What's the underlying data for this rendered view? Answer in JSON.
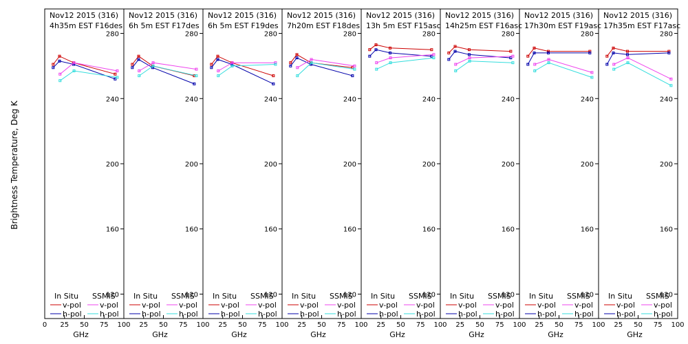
{
  "chart_data": {
    "type": "line",
    "ylabel": "Brightness Temperature, Deg K",
    "xlabel": "GHz",
    "xlim": [
      0,
      100
    ],
    "ylim": [
      105,
      295
    ],
    "x_ticks": [
      "0",
      "25",
      "50",
      "75",
      "100"
    ],
    "y_ticks": [
      "120",
      "160",
      "200",
      "240",
      "280"
    ],
    "legend": {
      "in_situ_title": "In Situ",
      "ssmis_title": "SSMIS",
      "vpol": "v-pol",
      "hpol": "h-pol"
    },
    "colors": {
      "insitu_v": "#cc0000",
      "insitu_h": "#0000aa",
      "ssmis_v": "#ee44ee",
      "ssmis_h": "#33dddd"
    },
    "panels": [
      {
        "line1": "Nov12 2015 (316)",
        "line2": "4h35m  EST  F16des",
        "insitu_v": {
          "x": [
            10.7,
            18.7,
            36.5,
            89.0
          ],
          "y": [
            261,
            266,
            262,
            255
          ]
        },
        "insitu_h": {
          "x": [
            10.7,
            18.7,
            36.5,
            89.0
          ],
          "y": [
            259,
            263,
            261,
            252
          ]
        },
        "ssmis_v": {
          "x": [
            19.35,
            37.0,
            91.65
          ],
          "y": [
            255,
            262,
            257
          ]
        },
        "ssmis_h": {
          "x": [
            19.35,
            37.0,
            91.65
          ],
          "y": [
            251,
            257,
            253
          ]
        }
      },
      {
        "line1": "Nov12 2015 (316)",
        "line2": "6h 5m  EST  F17des",
        "insitu_v": {
          "x": [
            10.7,
            18.7,
            36.5,
            89.0
          ],
          "y": [
            261,
            266,
            260,
            254
          ]
        },
        "insitu_h": {
          "x": [
            10.7,
            18.7,
            36.5,
            89.0
          ],
          "y": [
            259,
            264,
            259,
            249
          ]
        },
        "ssmis_v": {
          "x": [
            19.35,
            37.0,
            91.65
          ],
          "y": [
            257,
            262,
            258
          ]
        },
        "ssmis_h": {
          "x": [
            19.35,
            37.0,
            91.65
          ],
          "y": [
            254,
            260,
            254
          ]
        }
      },
      {
        "line1": "Nov12 2015 (316)",
        "line2": "6h 5m  EST  F19des",
        "insitu_v": {
          "x": [
            10.7,
            18.7,
            36.5,
            89.0
          ],
          "y": [
            261,
            266,
            262,
            254
          ]
        },
        "insitu_h": {
          "x": [
            10.7,
            18.7,
            36.5,
            89.0
          ],
          "y": [
            259,
            264,
            261,
            249
          ]
        },
        "ssmis_v": {
          "x": [
            19.35,
            37.0,
            91.65
          ],
          "y": [
            257,
            262,
            262
          ]
        },
        "ssmis_h": {
          "x": [
            19.35,
            37.0,
            91.65
          ],
          "y": [
            254,
            260,
            261
          ]
        }
      },
      {
        "line1": "Nov12 2015 (316)",
        "line2": "7h20m  EST  F18des",
        "insitu_v": {
          "x": [
            10.7,
            18.7,
            36.5,
            89.0
          ],
          "y": [
            262,
            267,
            262,
            259
          ]
        },
        "insitu_h": {
          "x": [
            10.7,
            18.7,
            36.5,
            89.0
          ],
          "y": [
            260,
            265,
            261,
            254
          ]
        },
        "ssmis_v": {
          "x": [
            19.35,
            37.0,
            91.65
          ],
          "y": [
            259,
            264,
            260
          ]
        },
        "ssmis_h": {
          "x": [
            19.35,
            37.0,
            91.65
          ],
          "y": [
            254,
            262,
            258
          ]
        }
      },
      {
        "line1": "Nov12 2015 (316)",
        "line2": "13h 5m  EST  F15asc",
        "insitu_v": {
          "x": [
            10.7,
            18.7,
            36.5,
            89.0
          ],
          "y": [
            270,
            273,
            271,
            270
          ]
        },
        "insitu_h": {
          "x": [
            10.7,
            18.7,
            36.5,
            89.0
          ],
          "y": [
            266,
            270,
            268,
            266
          ]
        },
        "ssmis_v": {
          "x": [
            19.35,
            37.0,
            91.65
          ],
          "y": [
            262,
            265,
            267
          ]
        },
        "ssmis_h": {
          "x": [
            19.35,
            37.0,
            91.65
          ],
          "y": [
            258,
            262,
            265
          ]
        }
      },
      {
        "line1": "Nov12 2015 (316)",
        "line2": "14h25m  EST  F16asc",
        "insitu_v": {
          "x": [
            10.7,
            18.7,
            36.5,
            89.0
          ],
          "y": [
            268,
            272,
            270,
            269
          ]
        },
        "insitu_h": {
          "x": [
            10.7,
            18.7,
            36.5,
            89.0
          ],
          "y": [
            264,
            269,
            267,
            265
          ]
        },
        "ssmis_v": {
          "x": [
            19.35,
            37.0,
            91.65
          ],
          "y": [
            261,
            265,
            266
          ]
        },
        "ssmis_h": {
          "x": [
            19.35,
            37.0,
            91.65
          ],
          "y": [
            257,
            263,
            262
          ]
        }
      },
      {
        "line1": "Nov12 2015 (316)",
        "line2": "17h30m  EST  F19asc",
        "insitu_v": {
          "x": [
            10.7,
            18.7,
            36.5,
            89.0
          ],
          "y": [
            266,
            271,
            269,
            269
          ]
        },
        "insitu_h": {
          "x": [
            10.7,
            18.7,
            36.5,
            89.0
          ],
          "y": [
            261,
            268,
            268,
            268
          ]
        },
        "ssmis_v": {
          "x": [
            19.35,
            37.0,
            91.65
          ],
          "y": [
            261,
            264,
            256
          ]
        },
        "ssmis_h": {
          "x": [
            19.35,
            37.0,
            91.65
          ],
          "y": [
            257,
            262,
            253
          ]
        }
      },
      {
        "line1": "Nov12 2015 (316)",
        "line2": "17h35m  EST  F17asc",
        "insitu_v": {
          "x": [
            10.7,
            18.7,
            36.5,
            89.0
          ],
          "y": [
            266,
            271,
            269,
            269
          ]
        },
        "insitu_h": {
          "x": [
            10.7,
            18.7,
            36.5,
            89.0
          ],
          "y": [
            261,
            268,
            267,
            268
          ]
        },
        "ssmis_v": {
          "x": [
            19.35,
            37.0,
            91.65
          ],
          "y": [
            261,
            265,
            252
          ]
        },
        "ssmis_h": {
          "x": [
            19.35,
            37.0,
            91.65
          ],
          "y": [
            258,
            262,
            248
          ]
        }
      }
    ]
  }
}
